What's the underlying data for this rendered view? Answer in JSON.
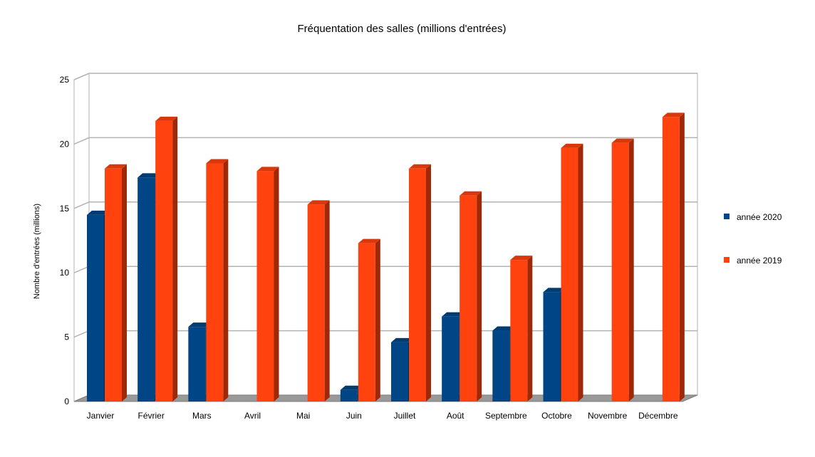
{
  "chart_data": {
    "type": "bar",
    "title": "Fréquentation des salles (millions d'entrées)",
    "xlabel": "",
    "ylabel": "Nombre d'entrées (millions)",
    "ylim": [
      0,
      25
    ],
    "yticks": [
      0,
      5,
      10,
      15,
      20,
      25
    ],
    "grid": true,
    "legend": "right",
    "categories": [
      "Janvier",
      "Février",
      "Mars",
      "Avril",
      "Mai",
      "Juin",
      "Juillet",
      "Août",
      "Septembre",
      "Octobre",
      "Novembre",
      "Décembre"
    ],
    "series": [
      {
        "name": "année 2020",
        "color": "#004586",
        "values": [
          14.5,
          17.4,
          5.8,
          null,
          null,
          0.9,
          4.6,
          6.6,
          5.5,
          8.5,
          null,
          null
        ]
      },
      {
        "name": "année 2019",
        "color": "#ff420e",
        "values": [
          18.1,
          21.8,
          18.5,
          17.9,
          15.3,
          12.3,
          18.1,
          16.0,
          11.0,
          19.7,
          20.1,
          22.1
        ]
      }
    ]
  }
}
